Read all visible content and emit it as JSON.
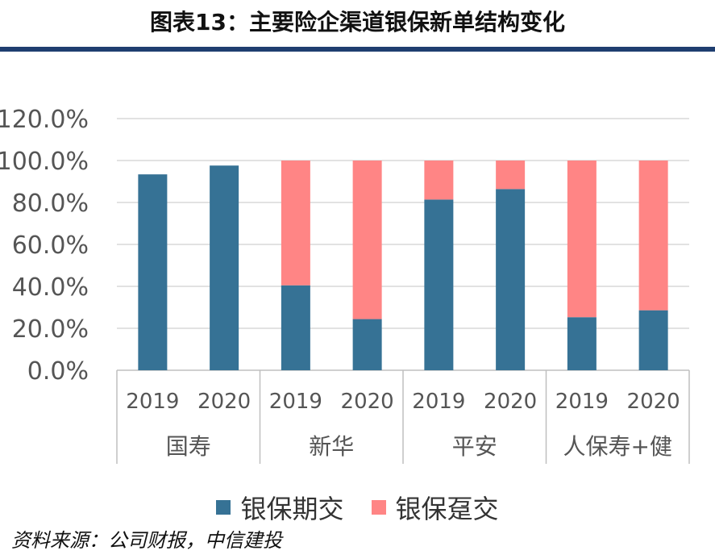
{
  "title": "图表13：主要险企渠道银保新单结构变化",
  "source": "资料来源：公司财报，中信建投",
  "colors": {
    "series1": "#367295",
    "series2": "#ff8585",
    "grid": "#d9d9d9",
    "axis": "#bfbfbf",
    "title_rule": "#1f3e70"
  },
  "chart_data": {
    "type": "bar",
    "stacked": true,
    "groups": [
      "国寿",
      "新华",
      "平安",
      "人保寿+健"
    ],
    "categories": [
      "2019",
      "2020",
      "2019",
      "2020",
      "2019",
      "2020",
      "2019",
      "2020"
    ],
    "series": [
      {
        "name": "银保期交",
        "values": [
          0.934,
          0.976,
          0.405,
          0.244,
          0.814,
          0.864,
          0.253,
          0.286
        ]
      },
      {
        "name": "银保趸交",
        "values": [
          0,
          0,
          0.595,
          0.756,
          0.186,
          0.136,
          0.747,
          0.714
        ]
      }
    ],
    "ylim": [
      0,
      1.2
    ],
    "yticks": [
      "0.0%",
      "20.0%",
      "40.0%",
      "60.0%",
      "80.0%",
      "100.0%",
      "120.0%"
    ],
    "grid": true,
    "legend_position": "bottom"
  }
}
